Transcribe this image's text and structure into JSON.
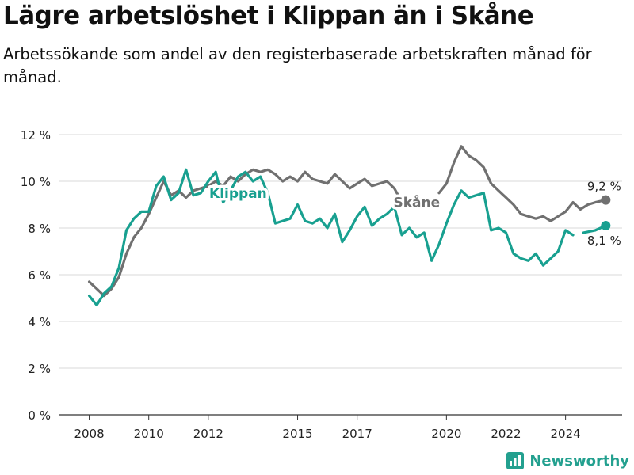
{
  "title": "Lägre arbetslöshet i Klippan än i Skåne",
  "subtitle": "Arbetssökande som andel av den registerbaserade arbetskraften månad för månad.",
  "brand": "Newsworthy",
  "colors": {
    "skane": "#707070",
    "klippan": "#18a090",
    "grid": "#d9d9d9",
    "axis": "#333333"
  },
  "chart_data": {
    "type": "line",
    "ylim": [
      0,
      12
    ],
    "yticks": [
      0,
      2,
      4,
      6,
      8,
      10,
      12
    ],
    "ytick_labels": [
      "0 %",
      "2 %",
      "4 %",
      "6 %",
      "8 %",
      "10 %",
      "12 %"
    ],
    "xlim": [
      2007.0,
      2025.9
    ],
    "xticks": [
      2008,
      2010,
      2012,
      2015,
      2017,
      2020,
      2022,
      2024
    ],
    "xtick_labels": [
      "2008",
      "2010",
      "2012",
      "2015",
      "2017",
      "2020",
      "2022",
      "2024"
    ],
    "series": [
      {
        "name": "Skåne",
        "end_label": "9,2 %",
        "points": [
          [
            2008.0,
            5.7
          ],
          [
            2008.25,
            5.4
          ],
          [
            2008.5,
            5.1
          ],
          [
            2008.75,
            5.4
          ],
          [
            2009.0,
            5.9
          ],
          [
            2009.25,
            6.9
          ],
          [
            2009.5,
            7.6
          ],
          [
            2009.75,
            8.0
          ],
          [
            2010.0,
            8.6
          ],
          [
            2010.25,
            9.3
          ],
          [
            2010.5,
            10.0
          ],
          [
            2010.75,
            9.4
          ],
          [
            2011.0,
            9.6
          ],
          [
            2011.25,
            9.3
          ],
          [
            2011.5,
            9.6
          ],
          [
            2011.75,
            9.7
          ],
          [
            2012.0,
            9.8
          ],
          [
            2012.25,
            10.0
          ],
          [
            2012.5,
            9.8
          ],
          [
            2012.75,
            10.2
          ],
          [
            2013.0,
            10.0
          ],
          [
            2013.25,
            10.3
          ],
          [
            2013.5,
            10.5
          ],
          [
            2013.75,
            10.4
          ],
          [
            2014.0,
            10.5
          ],
          [
            2014.25,
            10.3
          ],
          [
            2014.5,
            10.0
          ],
          [
            2014.75,
            10.2
          ],
          [
            2015.0,
            10.0
          ],
          [
            2015.25,
            10.4
          ],
          [
            2015.5,
            10.1
          ],
          [
            2015.75,
            10.0
          ],
          [
            2016.0,
            9.9
          ],
          [
            2016.25,
            10.3
          ],
          [
            2016.5,
            10.0
          ],
          [
            2016.75,
            9.7
          ],
          [
            2017.0,
            9.9
          ],
          [
            2017.25,
            10.1
          ],
          [
            2017.5,
            9.8
          ],
          [
            2017.75,
            9.9
          ],
          [
            2018.0,
            10.0
          ],
          [
            2018.25,
            9.7
          ],
          [
            2018.42,
            9.3
          ]
        ],
        "points_2": [
          [
            2019.75,
            9.5
          ],
          [
            2020.0,
            9.9
          ],
          [
            2020.25,
            10.8
          ],
          [
            2020.5,
            11.5
          ],
          [
            2020.75,
            11.1
          ],
          [
            2021.0,
            10.9
          ],
          [
            2021.25,
            10.6
          ],
          [
            2021.5,
            9.9
          ],
          [
            2021.75,
            9.6
          ],
          [
            2022.0,
            9.3
          ],
          [
            2022.25,
            9.0
          ],
          [
            2022.5,
            8.6
          ],
          [
            2022.75,
            8.5
          ],
          [
            2023.0,
            8.4
          ],
          [
            2023.25,
            8.5
          ],
          [
            2023.5,
            8.3
          ],
          [
            2023.75,
            8.5
          ],
          [
            2024.0,
            8.7
          ],
          [
            2024.25,
            9.1
          ],
          [
            2024.5,
            8.8
          ],
          [
            2024.75,
            9.0
          ],
          [
            2025.0,
            9.1
          ],
          [
            2025.35,
            9.2
          ]
        ]
      },
      {
        "name": "Klippan",
        "end_label": "8,1 %",
        "points": [
          [
            2008.0,
            5.1
          ],
          [
            2008.25,
            4.7
          ],
          [
            2008.5,
            5.2
          ],
          [
            2008.75,
            5.5
          ],
          [
            2009.0,
            6.3
          ],
          [
            2009.25,
            7.9
          ],
          [
            2009.5,
            8.4
          ],
          [
            2009.75,
            8.7
          ],
          [
            2010.0,
            8.7
          ],
          [
            2010.25,
            9.8
          ],
          [
            2010.5,
            10.2
          ],
          [
            2010.75,
            9.2
          ],
          [
            2011.0,
            9.5
          ],
          [
            2011.25,
            10.5
          ],
          [
            2011.5,
            9.4
          ],
          [
            2011.75,
            9.5
          ],
          [
            2012.0,
            10.0
          ],
          [
            2012.25,
            10.4
          ],
          [
            2012.5,
            9.1
          ],
          [
            2012.75,
            9.6
          ],
          [
            2013.0,
            10.2
          ],
          [
            2013.25,
            10.4
          ],
          [
            2013.5,
            10.0
          ],
          [
            2013.75,
            10.2
          ],
          [
            2014.0,
            9.5
          ],
          [
            2014.25,
            8.2
          ],
          [
            2014.5,
            8.3
          ],
          [
            2014.75,
            8.4
          ],
          [
            2015.0,
            9.0
          ],
          [
            2015.25,
            8.3
          ],
          [
            2015.5,
            8.2
          ],
          [
            2015.75,
            8.4
          ],
          [
            2016.0,
            8.0
          ],
          [
            2016.25,
            8.6
          ],
          [
            2016.5,
            7.4
          ],
          [
            2016.75,
            7.9
          ],
          [
            2017.0,
            8.5
          ],
          [
            2017.25,
            8.9
          ],
          [
            2017.5,
            8.1
          ],
          [
            2017.75,
            8.4
          ],
          [
            2018.0,
            8.6
          ],
          [
            2018.25,
            8.9
          ],
          [
            2018.5,
            7.7
          ],
          [
            2018.75,
            8.0
          ],
          [
            2019.0,
            7.6
          ],
          [
            2019.25,
            7.8
          ],
          [
            2019.5,
            6.6
          ],
          [
            2019.75,
            7.3
          ],
          [
            2020.0,
            8.2
          ],
          [
            2020.25,
            9.0
          ],
          [
            2020.5,
            9.6
          ],
          [
            2020.75,
            9.3
          ],
          [
            2021.0,
            9.4
          ],
          [
            2021.25,
            9.5
          ],
          [
            2021.5,
            7.9
          ],
          [
            2021.75,
            8.0
          ],
          [
            2022.0,
            7.8
          ],
          [
            2022.25,
            6.9
          ],
          [
            2022.5,
            6.7
          ],
          [
            2022.75,
            6.6
          ],
          [
            2023.0,
            6.9
          ],
          [
            2023.25,
            6.4
          ],
          [
            2023.5,
            6.7
          ],
          [
            2023.75,
            7.0
          ],
          [
            2024.0,
            7.9
          ],
          [
            2024.25,
            7.7
          ]
        ],
        "points_2": [
          [
            2024.6,
            7.8
          ],
          [
            2025.0,
            7.9
          ],
          [
            2025.35,
            8.1
          ]
        ]
      }
    ],
    "labels": [
      {
        "text": "Klippan",
        "series": "Klippan",
        "x": 2013.0,
        "y": 9.5
      },
      {
        "text": "Skåne",
        "series": "Skåne",
        "x": 2019.0,
        "y": 9.1
      }
    ],
    "grid": true
  }
}
